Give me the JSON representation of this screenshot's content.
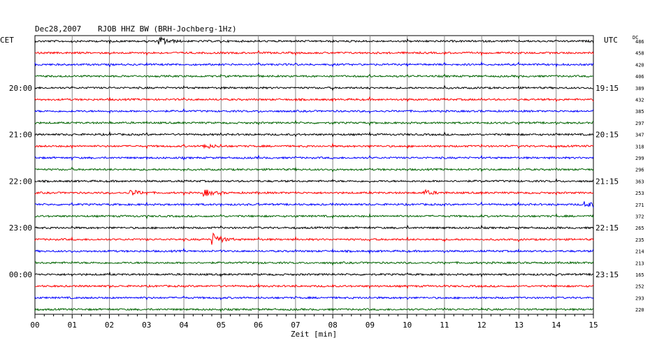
{
  "header": {
    "date": "Dec28,2007",
    "station": "RJOB HHZ BW (BRH-Jochberg-1Hz)",
    "left_zone": "CET",
    "right_zone": "UTC",
    "dc_header": "DC"
  },
  "chart_data": {
    "type": "line",
    "xlabel": "Zeit [min]",
    "xlim": [
      0,
      15
    ],
    "x_ticks": [
      "00",
      "01",
      "02",
      "03",
      "04",
      "05",
      "06",
      "07",
      "08",
      "09",
      "10",
      "11",
      "12",
      "13",
      "14",
      "15"
    ],
    "left_hour_labels": [
      "20:00",
      "21:00",
      "22:00",
      "23:00",
      "00:00"
    ],
    "right_hour_labels": [
      "19:15",
      "20:15",
      "21:15",
      "22:15",
      "23:15"
    ],
    "trace_colors": [
      "#000000",
      "#ff0000",
      "#0000ff",
      "#006400"
    ],
    "grid": true,
    "dc_values": [
      "486",
      "458",
      "420",
      "406",
      "389",
      "432",
      "385",
      "297",
      "347",
      "318",
      "299",
      "296",
      "363",
      "253",
      "271",
      "372",
      "265",
      "235",
      "214",
      "213",
      "165",
      "252",
      "293",
      "220"
    ],
    "events": [
      {
        "trace": 0,
        "minute": 3.4,
        "amplitude": 5
      },
      {
        "trace": 9,
        "minute": 4.6,
        "amplitude": 3
      },
      {
        "trace": 13,
        "minute": 2.6,
        "amplitude": 4
      },
      {
        "trace": 13,
        "minute": 4.6,
        "amplitude": 4
      },
      {
        "trace": 13,
        "minute": 10.5,
        "amplitude": 3
      },
      {
        "trace": 14,
        "minute": 14.8,
        "amplitude": 4
      },
      {
        "trace": 17,
        "minute": 4.8,
        "amplitude": 8
      }
    ]
  }
}
